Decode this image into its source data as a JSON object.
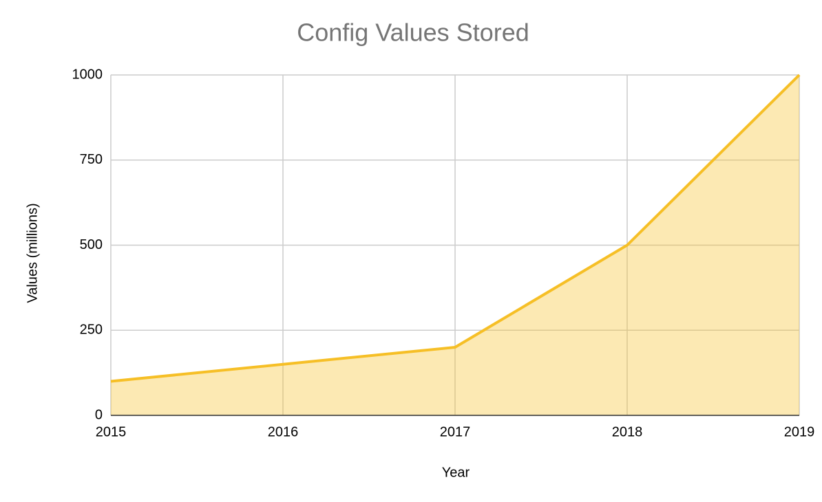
{
  "chart_data": {
    "type": "area",
    "title": "Config Values Stored",
    "x": [
      2015,
      2016,
      2017,
      2018,
      2019
    ],
    "series": [
      {
        "name": "Values",
        "color": "#f6bf26",
        "values": [
          100,
          150,
          200,
          500,
          1000
        ]
      }
    ],
    "xlim": [
      2015,
      2019
    ],
    "xticks": [
      2015,
      2016,
      2017,
      2018,
      2019
    ],
    "ylim": [
      0,
      1000
    ],
    "yticks": [
      0,
      250,
      500,
      750,
      1000
    ],
    "xlabel": "Year",
    "ylabel": "Values (millions)",
    "grid": true
  }
}
